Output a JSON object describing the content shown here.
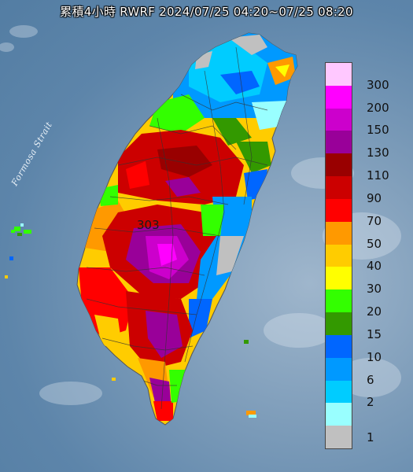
{
  "title": "累積4小時 RWRF 2024/07/25 04:20~07/25 08:20",
  "strait_label": "Formosa Strait",
  "peak_label": "303",
  "legend": [
    {
      "label": "300",
      "color": "#ffc8ff"
    },
    {
      "label": "200",
      "color": "#ff00ff"
    },
    {
      "label": "150",
      "color": "#cc00cc"
    },
    {
      "label": "130",
      "color": "#990099"
    },
    {
      "label": "110",
      "color": "#990000"
    },
    {
      "label": "90",
      "color": "#cc0000"
    },
    {
      "label": "70",
      "color": "#ff0000"
    },
    {
      "label": "50",
      "color": "#ff9900"
    },
    {
      "label": "40",
      "color": "#ffcc00"
    },
    {
      "label": "30",
      "color": "#ffff00"
    },
    {
      "label": "20",
      "color": "#33ff00"
    },
    {
      "label": "15",
      "color": "#339900"
    },
    {
      "label": "10",
      "color": "#0066ff"
    },
    {
      "label": "6",
      "color": "#0099ff"
    },
    {
      "label": "2",
      "color": "#00ccff"
    },
    {
      "label": "1",
      "color": "#99ffff"
    },
    {
      "label": "",
      "color": "#c0c0c0"
    }
  ]
}
